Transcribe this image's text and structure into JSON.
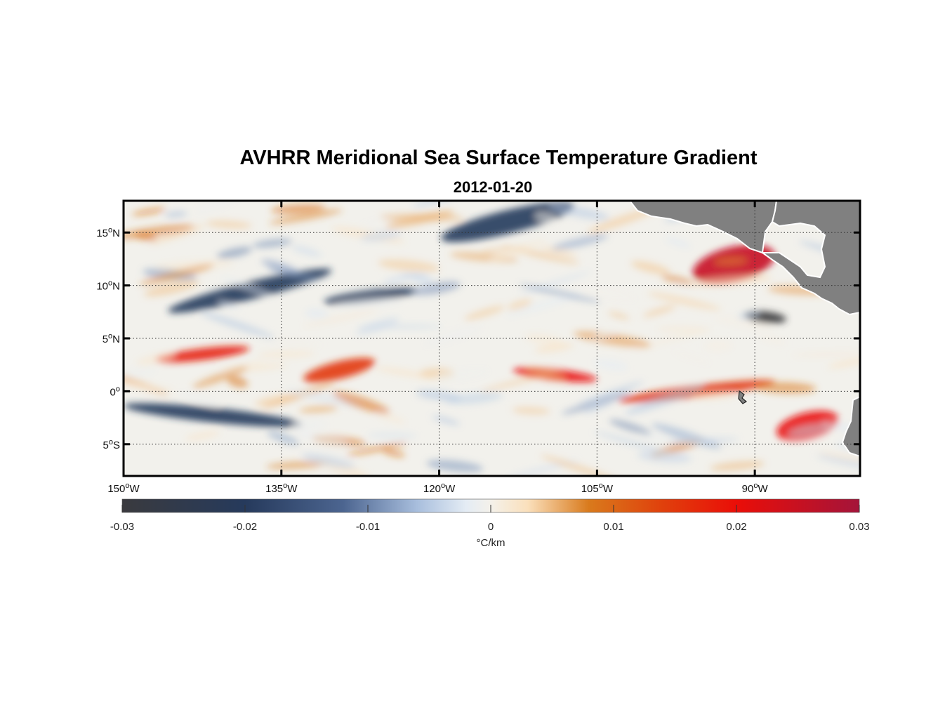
{
  "title": "AVHRR Meridional Sea Surface Temperature Gradient",
  "subtitle": "2012-01-20",
  "chart_data": {
    "type": "heatmap",
    "title": "AVHRR Meridional Sea Surface Temperature Gradient",
    "subtitle": "2012-01-20",
    "lon_range": [
      -150,
      -80
    ],
    "lat_range": [
      -8,
      18
    ],
    "x_ticks": [
      {
        "value": -150,
        "deg": "150",
        "hemi": "W"
      },
      {
        "value": -135,
        "deg": "135",
        "hemi": "W"
      },
      {
        "value": -120,
        "deg": "120",
        "hemi": "W"
      },
      {
        "value": -105,
        "deg": "105",
        "hemi": "W"
      },
      {
        "value": -90,
        "deg": "90",
        "hemi": "W"
      }
    ],
    "y_ticks": [
      {
        "value": 15,
        "deg": "15",
        "hemi": "N"
      },
      {
        "value": 10,
        "deg": "10",
        "hemi": "N"
      },
      {
        "value": 5,
        "deg": "5",
        "hemi": "N"
      },
      {
        "value": 0,
        "deg": "0",
        "hemi": ""
      },
      {
        "value": -5,
        "deg": "5",
        "hemi": "S"
      }
    ],
    "grid": true,
    "land_color": "#808080",
    "colorbar": {
      "label": "°C/km",
      "range": [
        -0.03,
        0.03
      ],
      "ticks": [
        {
          "value": -0.03,
          "label": "-0.03"
        },
        {
          "value": -0.02,
          "label": "-0.02"
        },
        {
          "value": -0.01,
          "label": "-0.01"
        },
        {
          "value": 0,
          "label": "0"
        },
        {
          "value": 0.01,
          "label": "0.01"
        },
        {
          "value": 0.02,
          "label": "0.02"
        },
        {
          "value": 0.03,
          "label": "0.03"
        }
      ],
      "colors": [
        {
          "value": -0.03,
          "color": "#3a3a3e"
        },
        {
          "value": -0.02,
          "color": "#263a5c"
        },
        {
          "value": -0.012,
          "color": "#4c6590"
        },
        {
          "value": -0.006,
          "color": "#a8bedd"
        },
        {
          "value": -0.002,
          "color": "#e4ecf4"
        },
        {
          "value": 0,
          "color": "#f4f1ea"
        },
        {
          "value": 0.003,
          "color": "#fae0bc"
        },
        {
          "value": 0.008,
          "color": "#d97a1c"
        },
        {
          "value": 0.014,
          "color": "#e0400c"
        },
        {
          "value": 0.02,
          "color": "#ea0e08"
        },
        {
          "value": 0.03,
          "color": "#a4143a"
        }
      ]
    },
    "features": [
      {
        "kind": "front",
        "sign": "positive",
        "lon": [
          -113,
          -105
        ],
        "lat": [
          0.6,
          2.5
        ],
        "peak": 0.02
      },
      {
        "kind": "front",
        "sign": "positive",
        "lon": [
          -147,
          -138
        ],
        "lat": [
          2.5,
          4.5
        ],
        "peak": 0.018
      },
      {
        "kind": "front",
        "sign": "positive",
        "lon": [
          -133,
          -126
        ],
        "lat": [
          0.5,
          3.5
        ],
        "peak": 0.015
      },
      {
        "kind": "front",
        "sign": "positive",
        "lon": [
          -103,
          -88
        ],
        "lat": [
          -1,
          1
        ],
        "peak": 0.015
      },
      {
        "kind": "front",
        "sign": "positive",
        "lon": [
          -88,
          -82
        ],
        "lat": [
          -5.5,
          -1
        ],
        "peak": 0.02
      },
      {
        "kind": "front",
        "sign": "positive",
        "lon": [
          -96,
          -88
        ],
        "lat": [
          9,
          15
        ],
        "peak": 0.025
      },
      {
        "kind": "front",
        "sign": "negative",
        "lon": [
          -146,
          -130
        ],
        "lat": [
          8,
          11
        ],
        "peak": -0.02
      },
      {
        "kind": "front",
        "sign": "negative",
        "lon": [
          -131,
          -122
        ],
        "lat": [
          8,
          10
        ],
        "peak": -0.02
      },
      {
        "kind": "front",
        "sign": "negative",
        "lon": [
          -150,
          -133
        ],
        "lat": [
          -3.5,
          -1
        ],
        "peak": -0.02
      },
      {
        "kind": "front",
        "sign": "negative",
        "lon": [
          -120,
          -107
        ],
        "lat": [
          14,
          18
        ],
        "peak": -0.02
      },
      {
        "kind": "front",
        "sign": "negative",
        "lon": [
          -91,
          -87
        ],
        "lat": [
          6,
          8
        ],
        "peak": -0.03
      }
    ]
  }
}
